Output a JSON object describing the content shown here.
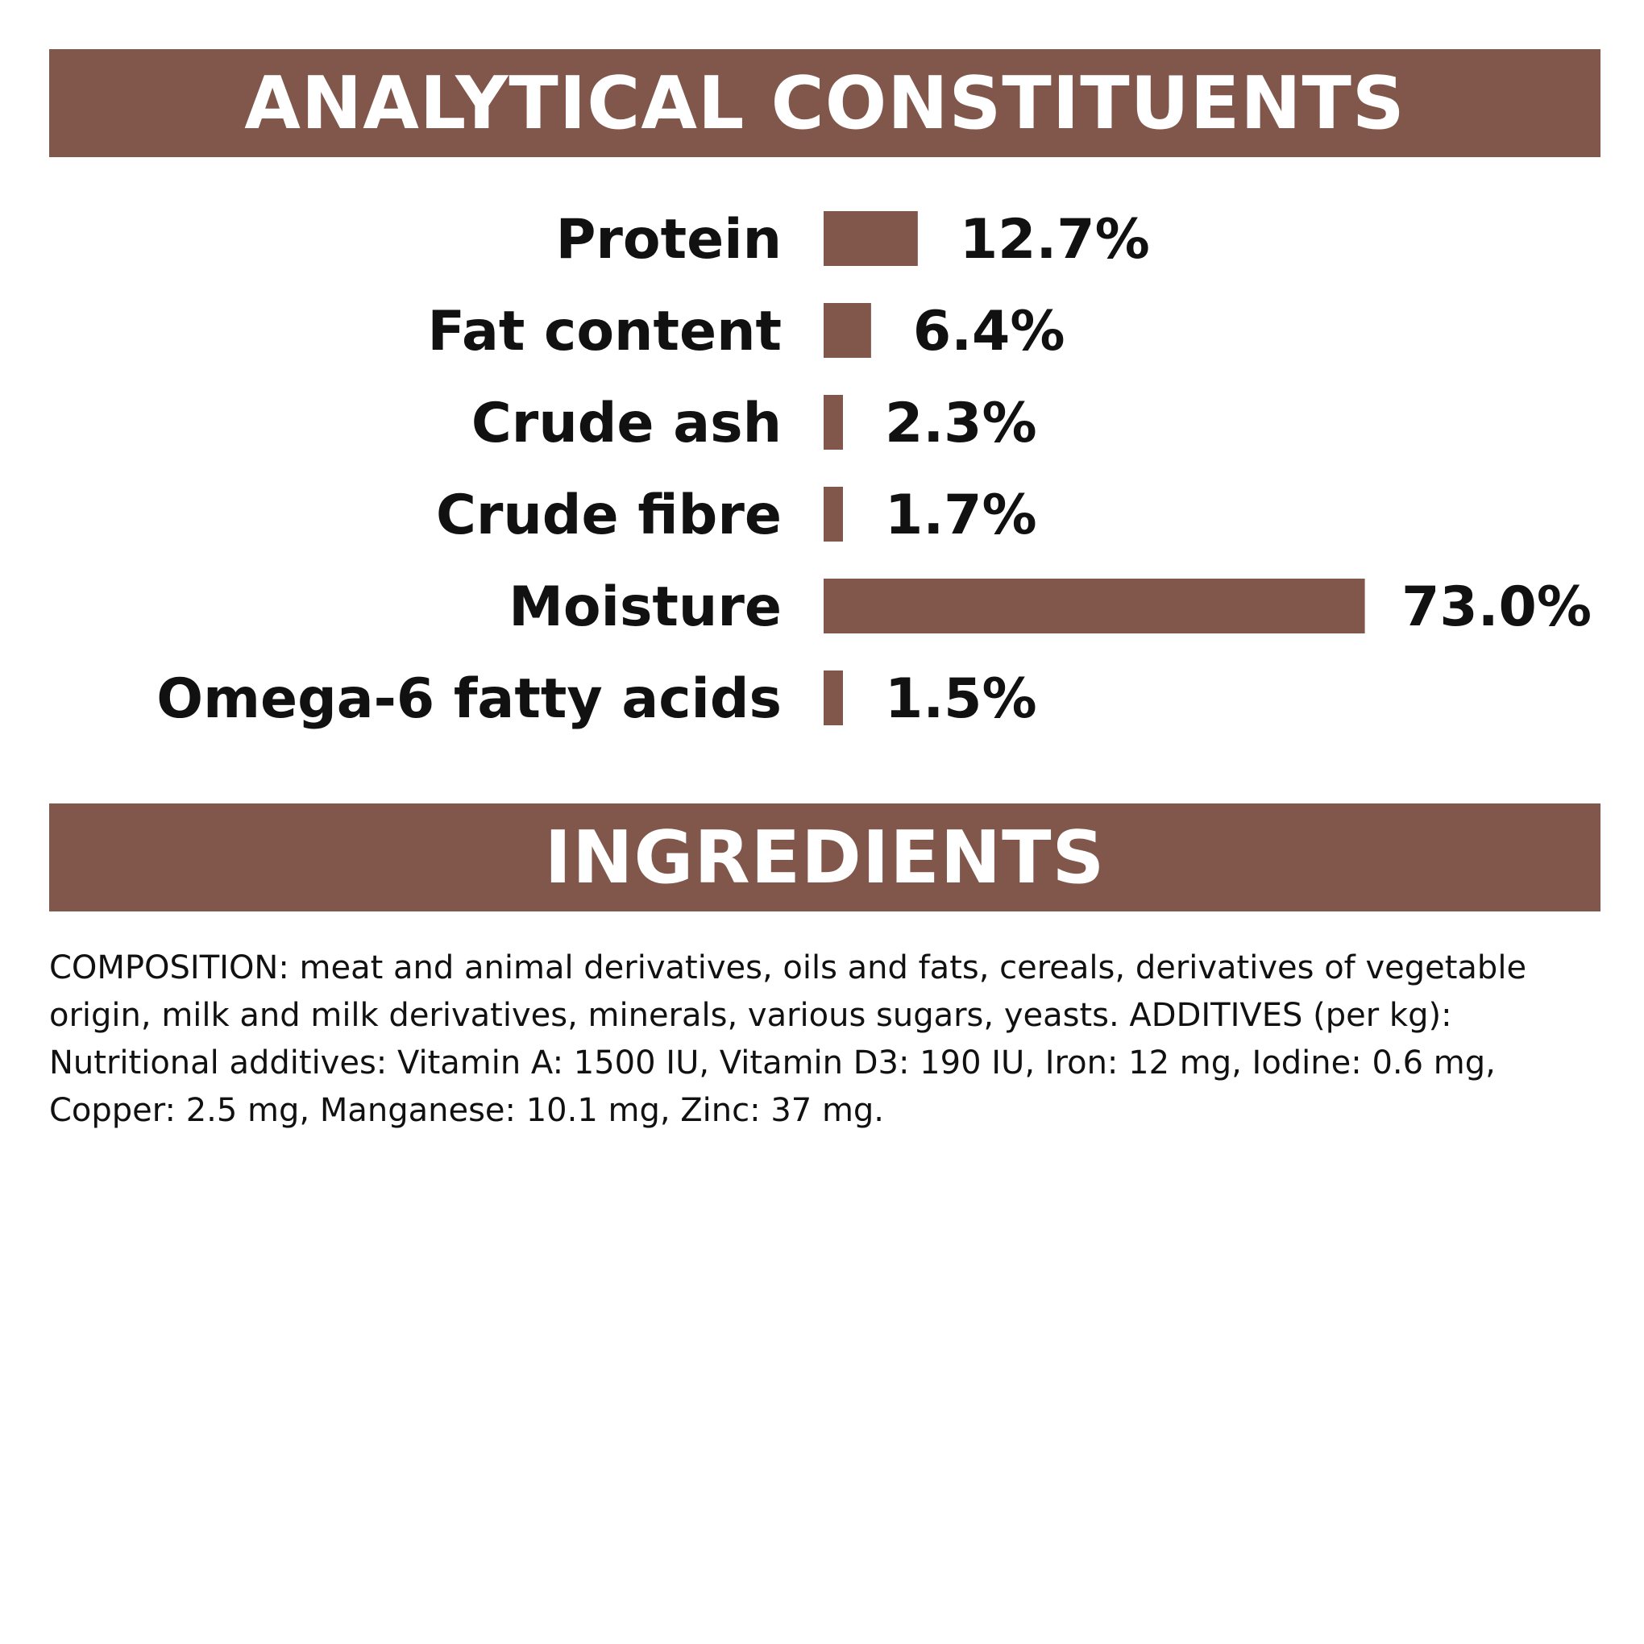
{
  "colors": {
    "brand": "#81574c",
    "background": "#ffffff",
    "text": "#111111"
  },
  "analytical": {
    "title": "ANALYTICAL CONSTITUENTS"
  },
  "ingredients": {
    "title": "INGREDIENTS",
    "composition": "COMPOSITION: meat and animal derivatives, oils and fats, cereals, derivatives of vegetable origin, milk and milk derivatives, minerals, various sugars, yeasts. ADDITIVES (per kg): Nutritional additives: Vitamin A: 1500 IU, Vitamin D3: 190 IU, Iron: 12 mg, Iodine: 0.6 mg, Copper: 2.5 mg, Manganese: 10.1 mg, Zinc: 37 mg."
  },
  "chart_data": {
    "type": "bar",
    "orientation": "horizontal",
    "categories": [
      "Protein",
      "Fat content",
      "Crude ash",
      "Crude fibre",
      "Moisture",
      "Omega-6 fatty acids"
    ],
    "values": [
      12.7,
      6.4,
      2.3,
      1.7,
      73.0,
      1.5
    ],
    "value_labels": [
      "12.7%",
      "6.4%",
      "2.3%",
      "1.7%",
      "73.0%",
      "1.5%"
    ],
    "unit": "%",
    "bar_color": "#81574c",
    "grid": false,
    "legend": "none"
  }
}
